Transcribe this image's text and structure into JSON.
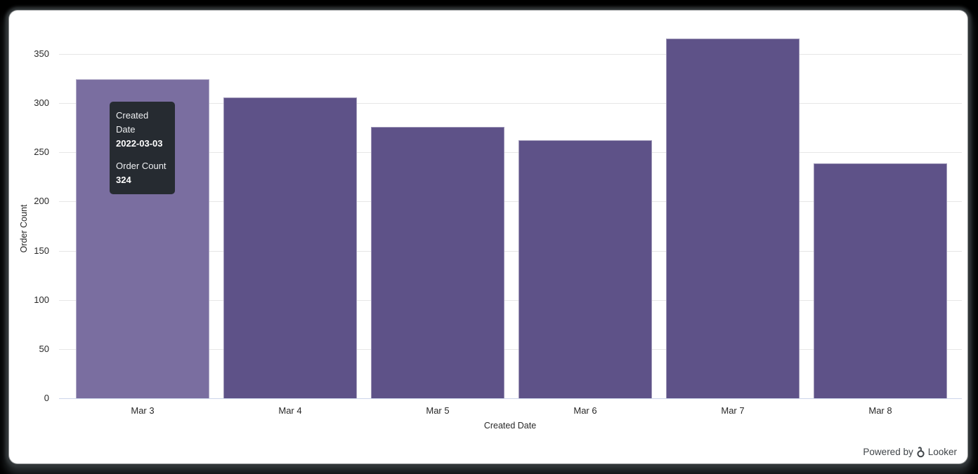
{
  "frame": {
    "background": "#000000",
    "panel_background": "#ffffff"
  },
  "chart_data": {
    "type": "bar",
    "title": "",
    "categories": [
      "Mar 3",
      "Mar 4",
      "Mar 5",
      "Mar 6",
      "Mar 7",
      "Mar 8"
    ],
    "values": [
      324,
      306,
      276,
      262,
      366,
      239
    ],
    "xlabel": "Created Date",
    "ylabel": "Order Count",
    "ylim": [
      0,
      350
    ],
    "yticks": [
      0,
      50,
      100,
      150,
      200,
      250,
      300,
      350
    ],
    "grid": true,
    "legend": "none",
    "bar_color": "#5e5288",
    "bar_hover_color": "#7a6ea0",
    "bar_border_color": "rgba(255,255,255,0.4)",
    "gridline_color": "#e6e6e6",
    "axis_line_color": "#ccd6eb",
    "tick_text_color": "#282828",
    "hovered_index": 0
  },
  "tooltip": {
    "background": "#262b31",
    "rows": [
      {
        "label": "Created Date",
        "value": "2022-03-03"
      },
      {
        "label": "Order Count",
        "value": "324"
      }
    ]
  },
  "footer": {
    "powered_by": "Powered by",
    "brand": "Looker",
    "text_color": "#3f4448"
  }
}
